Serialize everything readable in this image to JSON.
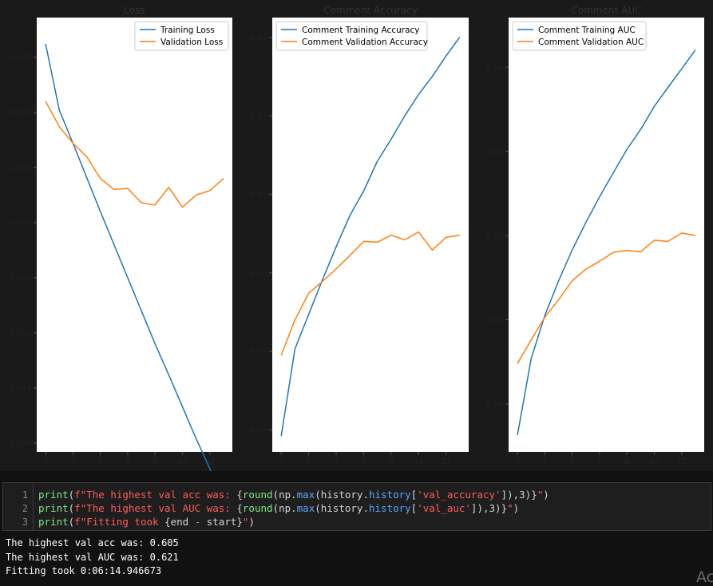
{
  "chart_data": [
    {
      "type": "line",
      "title": "Loss",
      "x": [
        0,
        1,
        2,
        3,
        4,
        5,
        6,
        7,
        8,
        9,
        10,
        11,
        12,
        13
      ],
      "xticks": [
        "0",
        "2",
        "4",
        "6",
        "8",
        "10",
        "12"
      ],
      "xlim": [
        -0.65,
        13.65
      ],
      "ylim": [
        0.6392,
        0.6786
      ],
      "yticks": [
        "0.640",
        "0.645",
        "0.650",
        "0.655",
        "0.660",
        "0.665",
        "0.670",
        "0.675"
      ],
      "series": [
        {
          "name": "Training Loss",
          "color": "#1f77b4",
          "values": [
            0.6762,
            0.6702,
            0.6672,
            0.6641,
            0.661,
            0.658,
            0.655,
            0.652,
            0.649,
            0.6462,
            0.6433,
            0.6404,
            0.6377,
            0.6348
          ]
        },
        {
          "name": "Validation Loss",
          "color": "#ff7f0e",
          "values": [
            0.671,
            0.6687,
            0.6672,
            0.666,
            0.664,
            0.663,
            0.6631,
            0.6618,
            0.6616,
            0.6632,
            0.6614,
            0.6625,
            0.6629,
            0.664
          ]
        }
      ],
      "legend": "upper right"
    },
    {
      "type": "line",
      "title": "Comment Accuracy",
      "x": [
        0,
        1,
        2,
        3,
        4,
        5,
        6,
        7,
        8,
        9,
        10,
        11,
        12,
        13
      ],
      "xticks": [
        "0",
        "2",
        "4",
        "6",
        "8",
        "10",
        "12"
      ],
      "xlim": [
        -0.65,
        13.65
      ],
      "ylim": [
        0.5772,
        0.6325
      ],
      "yticks": [
        "0.58",
        "0.59",
        "0.60",
        "0.61",
        "0.62",
        "0.63"
      ],
      "series": [
        {
          "name": "Comment Training Accuracy",
          "color": "#1f77b4",
          "values": [
            0.5792,
            0.5903,
            0.5947,
            0.5991,
            0.6033,
            0.6073,
            0.6104,
            0.6142,
            0.617,
            0.62,
            0.6227,
            0.625,
            0.6276,
            0.63
          ]
        },
        {
          "name": "Comment Validation Accuracy",
          "color": "#ff7f0e",
          "values": [
            0.5895,
            0.594,
            0.5974,
            0.5989,
            0.6005,
            0.6022,
            0.604,
            0.6039,
            0.6048,
            0.6042,
            0.6052,
            0.6029,
            0.6045,
            0.6048
          ]
        }
      ],
      "legend": "upper left"
    },
    {
      "type": "line",
      "title": "Comment AUC",
      "x": [
        0,
        1,
        2,
        3,
        4,
        5,
        6,
        7,
        8,
        9,
        10,
        11,
        12,
        13
      ],
      "xticks": [
        "0",
        "2",
        "4",
        "6",
        "8",
        "10",
        "12"
      ],
      "xlim": [
        -0.65,
        13.65
      ],
      "ylim": [
        0.5686,
        0.6718
      ],
      "yticks": [
        "0.58",
        "0.60",
        "0.62",
        "0.64",
        "0.66"
      ],
      "series": [
        {
          "name": "Comment Training AUC",
          "color": "#1f77b4",
          "values": [
            0.5726,
            0.5908,
            0.601,
            0.6092,
            0.6166,
            0.6231,
            0.6292,
            0.6349,
            0.6405,
            0.6452,
            0.6507,
            0.6552,
            0.6596,
            0.6641
          ]
        },
        {
          "name": "Comment Validation AUC",
          "color": "#ff7f0e",
          "values": [
            0.5896,
            0.5952,
            0.6006,
            0.6047,
            0.6093,
            0.612,
            0.6139,
            0.616,
            0.6165,
            0.6161,
            0.6189,
            0.6186,
            0.6206,
            0.62
          ]
        }
      ],
      "legend": "upper left"
    }
  ],
  "code_cell": {
    "line_numbers": [
      "1",
      "2",
      "3"
    ]
  },
  "output": {
    "lines": [
      "The highest val acc was: 0.605",
      "The highest val AUC was: 0.621",
      "Fitting took 0:06:14.946673"
    ]
  },
  "corner_fragment": "Ac"
}
